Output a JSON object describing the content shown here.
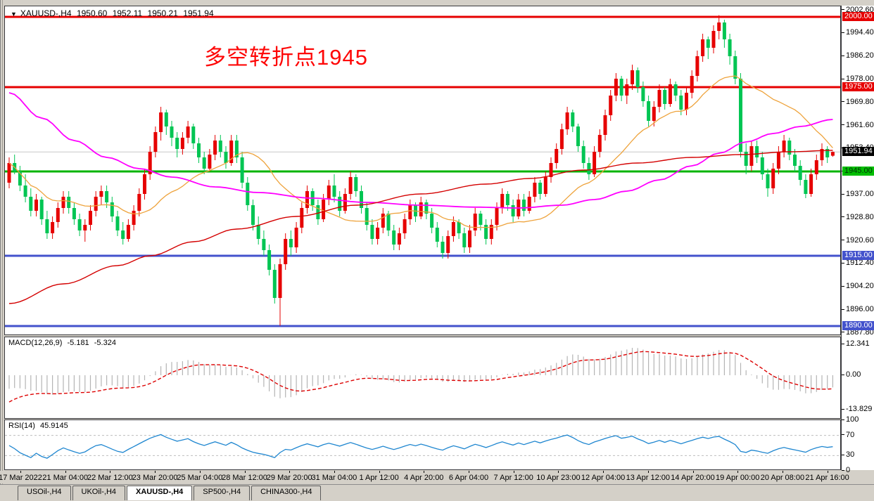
{
  "window": {
    "title": {
      "symbol": "XAUUSD-,H4",
      "open": "1950.60",
      "high": "1952.11",
      "low": "1950.21",
      "close": "1951.94"
    }
  },
  "annotation": {
    "text": "多空转折点1945",
    "color": "#fe0606"
  },
  "macd_panel": {
    "label": "MACD(12,26,9)",
    "value_main": "-5.181",
    "value_signal": "-5.324"
  },
  "rsi_panel": {
    "label": "RSI(14)",
    "value": "45.9145"
  },
  "tabs": [
    {
      "label": "USOil-,H4",
      "active": false
    },
    {
      "label": "UKOil-,H4",
      "active": false
    },
    {
      "label": "XAUUSD-,H4",
      "active": true
    },
    {
      "label": "SP500-,H4",
      "active": false
    },
    {
      "label": "CHINA300-,H4",
      "active": false
    }
  ],
  "chart_data": {
    "type": "candlestick",
    "symbol": "XAUUSD-",
    "timeframe": "H4",
    "grid": "off",
    "colors": {
      "candle_up": "#e60000",
      "candle_down": "#00c553",
      "ma_fast": "#eea33c",
      "ma_mid": "#ff00ff",
      "ma_slow": "#d40000",
      "macd_hist": "#b4b4b4",
      "macd_signal": "#dd0000",
      "rsi_line": "#1e86d0",
      "level_red": "#e60000",
      "level_green": "#00b400",
      "level_blue": "#4352cc",
      "current_line": "#c8c8c8"
    },
    "price_axis": {
      "ylim": [
        1886.75,
        2003.25
      ],
      "ticks": [
        "2002.60",
        "1994.40",
        "1986.20",
        "1978.00",
        "1969.80",
        "1961.60",
        "1953.40",
        "1945.20",
        "1937.00",
        "1928.80",
        "1920.60",
        "1912.40",
        "1904.20",
        "1896.00",
        "1887.80"
      ]
    },
    "hlines": [
      {
        "price": 2000.0,
        "label": "2000.00",
        "style": "red"
      },
      {
        "price": 1975.0,
        "label": "1975.00",
        "style": "red"
      },
      {
        "price": 1945.0,
        "label": "1945.00",
        "style": "green"
      },
      {
        "price": 1915.0,
        "label": "1915.00",
        "style": "blue"
      },
      {
        "price": 1890.0,
        "label": "1890.00",
        "style": "blue"
      }
    ],
    "current_price": {
      "price": 1951.94,
      "label": "1951.94"
    },
    "candles": [
      [
        1941,
        1950,
        1939,
        1948
      ],
      [
        1948,
        1951,
        1944,
        1945
      ],
      [
        1945,
        1947,
        1938,
        1940
      ],
      [
        1940,
        1944,
        1934,
        1936
      ],
      [
        1936,
        1939,
        1929,
        1931
      ],
      [
        1931,
        1937,
        1929,
        1935
      ],
      [
        1935,
        1936,
        1926,
        1928
      ],
      [
        1928,
        1931,
        1921,
        1923
      ],
      [
        1923,
        1929,
        1921,
        1927
      ],
      [
        1927,
        1934,
        1925,
        1932
      ],
      [
        1932,
        1938,
        1930,
        1936
      ],
      [
        1936,
        1938,
        1930,
        1932
      ],
      [
        1932,
        1934,
        1926,
        1928
      ],
      [
        1928,
        1930,
        1922,
        1924
      ],
      [
        1924,
        1928,
        1920,
        1926
      ],
      [
        1926,
        1933,
        1924,
        1931
      ],
      [
        1931,
        1938,
        1929,
        1936
      ],
      [
        1936,
        1940,
        1933,
        1938
      ],
      [
        1938,
        1940,
        1932,
        1934
      ],
      [
        1934,
        1936,
        1927,
        1929
      ],
      [
        1929,
        1931,
        1922,
        1924
      ],
      [
        1924,
        1927,
        1919,
        1921
      ],
      [
        1921,
        1928,
        1920,
        1926
      ],
      [
        1926,
        1933,
        1924,
        1931
      ],
      [
        1931,
        1939,
        1929,
        1937
      ],
      [
        1937,
        1946,
        1935,
        1944
      ],
      [
        1944,
        1954,
        1942,
        1952
      ],
      [
        1952,
        1961,
        1950,
        1959
      ],
      [
        1959,
        1968,
        1956,
        1966
      ],
      [
        1966,
        1967,
        1958,
        1961
      ],
      [
        1961,
        1963,
        1954,
        1957
      ],
      [
        1957,
        1959,
        1950,
        1953
      ],
      [
        1953,
        1959,
        1951,
        1957
      ],
      [
        1957,
        1963,
        1955,
        1961
      ],
      [
        1961,
        1962,
        1953,
        1955
      ],
      [
        1955,
        1957,
        1948,
        1950
      ],
      [
        1950,
        1952,
        1944,
        1946
      ],
      [
        1946,
        1953,
        1945,
        1951
      ],
      [
        1951,
        1958,
        1949,
        1956
      ],
      [
        1956,
        1958,
        1950,
        1952
      ],
      [
        1952,
        1954,
        1946,
        1948
      ],
      [
        1948,
        1958,
        1947,
        1956
      ],
      [
        1956,
        1958,
        1948,
        1950
      ],
      [
        1950,
        1952,
        1939,
        1941
      ],
      [
        1941,
        1943,
        1931,
        1933
      ],
      [
        1933,
        1935,
        1924,
        1926
      ],
      [
        1926,
        1929,
        1919,
        1921
      ],
      [
        1921,
        1924,
        1915,
        1917
      ],
      [
        1917,
        1919,
        1908,
        1910
      ],
      [
        1910,
        1912,
        1898,
        1900
      ],
      [
        1900,
        1914,
        1890.1,
        1912
      ],
      [
        1912,
        1923,
        1910,
        1921
      ],
      [
        1921,
        1924,
        1915,
        1918
      ],
      [
        1918,
        1927,
        1916,
        1925
      ],
      [
        1925,
        1934,
        1923,
        1932
      ],
      [
        1932,
        1940,
        1930,
        1938
      ],
      [
        1938,
        1939,
        1931,
        1933
      ],
      [
        1933,
        1935,
        1926,
        1928
      ],
      [
        1928,
        1937,
        1927,
        1935
      ],
      [
        1935,
        1942,
        1933,
        1940
      ],
      [
        1940,
        1944,
        1934,
        1936
      ],
      [
        1936,
        1938,
        1929,
        1931
      ],
      [
        1931,
        1939,
        1930,
        1937
      ],
      [
        1937,
        1945,
        1935,
        1943
      ],
      [
        1943,
        1944,
        1936,
        1938
      ],
      [
        1938,
        1940,
        1930,
        1932
      ],
      [
        1932,
        1934,
        1924,
        1926
      ],
      [
        1926,
        1928,
        1919,
        1921
      ],
      [
        1921,
        1927,
        1919,
        1925
      ],
      [
        1925,
        1932,
        1923,
        1930
      ],
      [
        1930,
        1931,
        1922,
        1924
      ],
      [
        1924,
        1926,
        1917,
        1919
      ],
      [
        1919,
        1925,
        1917,
        1923
      ],
      [
        1923,
        1930,
        1921,
        1928
      ],
      [
        1928,
        1935,
        1926,
        1933
      ],
      [
        1933,
        1934,
        1927,
        1929
      ],
      [
        1929,
        1936,
        1928,
        1934
      ],
      [
        1934,
        1935,
        1928,
        1930
      ],
      [
        1930,
        1932,
        1923,
        1925
      ],
      [
        1925,
        1927,
        1918,
        1920
      ],
      [
        1920,
        1922,
        1914,
        1916
      ],
      [
        1916,
        1924,
        1914,
        1922
      ],
      [
        1922,
        1929,
        1920,
        1927
      ],
      [
        1927,
        1928,
        1921,
        1923
      ],
      [
        1923,
        1925,
        1916,
        1918
      ],
      [
        1918,
        1926,
        1916,
        1924
      ],
      [
        1924,
        1932,
        1922,
        1930
      ],
      [
        1930,
        1931,
        1924,
        1926
      ],
      [
        1926,
        1928,
        1919,
        1921
      ],
      [
        1921,
        1928,
        1919,
        1926
      ],
      [
        1926,
        1934,
        1924,
        1932
      ],
      [
        1932,
        1939,
        1930,
        1937
      ],
      [
        1937,
        1938,
        1931,
        1933
      ],
      [
        1933,
        1935,
        1927,
        1929
      ],
      [
        1929,
        1937,
        1928,
        1935
      ],
      [
        1935,
        1937,
        1929,
        1931
      ],
      [
        1931,
        1938,
        1930,
        1936
      ],
      [
        1936,
        1943,
        1934,
        1941
      ],
      [
        1941,
        1942,
        1935,
        1937
      ],
      [
        1937,
        1945,
        1936,
        1943
      ],
      [
        1943,
        1950,
        1941,
        1948
      ],
      [
        1948,
        1955,
        1946,
        1953
      ],
      [
        1953,
        1962,
        1951,
        1960
      ],
      [
        1960,
        1968,
        1958,
        1966
      ],
      [
        1966,
        1967,
        1959,
        1961
      ],
      [
        1961,
        1962,
        1952,
        1954
      ],
      [
        1954,
        1956,
        1946,
        1948
      ],
      [
        1948,
        1950,
        1942,
        1944
      ],
      [
        1944,
        1954,
        1943,
        1952
      ],
      [
        1952,
        1960,
        1950,
        1958
      ],
      [
        1958,
        1967,
        1956,
        1965
      ],
      [
        1965,
        1974,
        1963,
        1972
      ],
      [
        1972,
        1980,
        1970,
        1978
      ],
      [
        1978,
        1979,
        1970,
        1972
      ],
      [
        1972,
        1978,
        1969,
        1976
      ],
      [
        1976,
        1983,
        1974,
        1981
      ],
      [
        1981,
        1982,
        1973,
        1975
      ],
      [
        1975,
        1977,
        1968,
        1970
      ],
      [
        1970,
        1972,
        1961,
        1963
      ],
      [
        1963,
        1970,
        1961,
        1968
      ],
      [
        1968,
        1976,
        1966,
        1974
      ],
      [
        1974,
        1975,
        1967,
        1969
      ],
      [
        1969,
        1978,
        1968,
        1976
      ],
      [
        1976,
        1977,
        1970,
        1972
      ],
      [
        1972,
        1974,
        1965,
        1967
      ],
      [
        1967,
        1975,
        1965,
        1973
      ],
      [
        1973,
        1981,
        1971,
        1979
      ],
      [
        1979,
        1988,
        1977,
        1986
      ],
      [
        1986,
        1994,
        1984,
        1992
      ],
      [
        1992,
        1993,
        1985,
        1989
      ],
      [
        1989,
        1997,
        1987,
        1995
      ],
      [
        1995,
        2000.6,
        1992,
        1998
      ],
      [
        1998,
        1999,
        1989,
        1992
      ],
      [
        1992,
        1994,
        1983,
        1986
      ],
      [
        1986,
        1988,
        1976,
        1978
      ],
      [
        1978,
        1980,
        1950,
        1952
      ],
      [
        1952,
        1955,
        1944,
        1947
      ],
      [
        1947,
        1956,
        1945,
        1954
      ],
      [
        1954,
        1956,
        1948,
        1950
      ],
      [
        1950,
        1952,
        1942,
        1944
      ],
      [
        1944,
        1946,
        1936,
        1939
      ],
      [
        1939,
        1948,
        1937,
        1946
      ],
      [
        1946,
        1954,
        1944,
        1952
      ],
      [
        1952,
        1958,
        1950,
        1956
      ],
      [
        1956,
        1957,
        1949,
        1951
      ],
      [
        1951,
        1953,
        1945,
        1947
      ],
      [
        1947,
        1949,
        1940,
        1942
      ],
      [
        1942,
        1944,
        1935.5,
        1937
      ],
      [
        1937,
        1946,
        1936,
        1944
      ],
      [
        1944,
        1951,
        1942,
        1949
      ],
      [
        1949,
        1955,
        1947,
        1953
      ],
      [
        1953,
        1954,
        1948,
        1950
      ],
      [
        1950.6,
        1952.11,
        1950.21,
        1951.94
      ]
    ],
    "ma_lines": [
      {
        "name": "ma-fast-orange",
        "color": "#eea33c",
        "width": 1.3,
        "type": "sma",
        "period": 21
      },
      {
        "name": "ma-mid-magenta",
        "color": "#ff00ff",
        "width": 1.8,
        "type": "points",
        "points": [
          [
            0,
            1973
          ],
          [
            6,
            1964
          ],
          [
            12,
            1956
          ],
          [
            18,
            1950
          ],
          [
            24,
            1946
          ],
          [
            30,
            1943
          ],
          [
            38,
            1939.5
          ],
          [
            46,
            1937.5
          ],
          [
            56,
            1935.5
          ],
          [
            66,
            1934
          ],
          [
            76,
            1933
          ],
          [
            86,
            1932.3
          ],
          [
            94,
            1932
          ],
          [
            102,
            1933
          ],
          [
            108,
            1935
          ],
          [
            114,
            1938
          ],
          [
            120,
            1942
          ],
          [
            126,
            1947
          ],
          [
            131,
            1951.5
          ],
          [
            136,
            1955.5
          ],
          [
            141,
            1958.5
          ],
          [
            146,
            1961
          ],
          [
            152,
            1963.5
          ]
        ]
      },
      {
        "name": "ma-slow-darkred",
        "color": "#d40000",
        "width": 1.4,
        "type": "points",
        "points": [
          [
            0,
            1898
          ],
          [
            10,
            1905
          ],
          [
            20,
            1911.5
          ],
          [
            26,
            1915
          ],
          [
            34,
            1920
          ],
          [
            42,
            1924.5
          ],
          [
            53,
            1929
          ],
          [
            64,
            1933
          ],
          [
            76,
            1937
          ],
          [
            88,
            1940.5
          ],
          [
            96,
            1942.5
          ],
          [
            106,
            1945.5
          ],
          [
            116,
            1948
          ],
          [
            126,
            1950
          ],
          [
            135,
            1951
          ],
          [
            144,
            1952
          ],
          [
            152,
            1952.5
          ]
        ]
      }
    ],
    "macd": {
      "axis_ticks": [
        "12.341",
        "0.00",
        "-13.829"
      ],
      "ylim": [
        -13.829,
        12.341
      ]
    },
    "rsi": {
      "axis_ticks": [
        "100",
        "70",
        "30",
        "0"
      ],
      "levels": [
        70,
        30
      ],
      "ylim": [
        0,
        100
      ]
    },
    "time_labels": [
      "17 Mar 2022",
      "21 Mar 04:00",
      "22 Mar 12:00",
      "23 Mar 20:00",
      "25 Mar 04:00",
      "28 Mar 12:00",
      "29 Mar 20:00",
      "31 Mar 04:00",
      "1 Apr 12:00",
      "4 Apr 20:00",
      "6 Apr 04:00",
      "7 Apr 12:00",
      "10 Apr 23:00",
      "12 Apr 04:00",
      "13 Apr 12:00",
      "14 Apr 20:00",
      "19 Apr 00:00",
      "20 Apr 08:00",
      "21 Apr 16:00"
    ]
  }
}
